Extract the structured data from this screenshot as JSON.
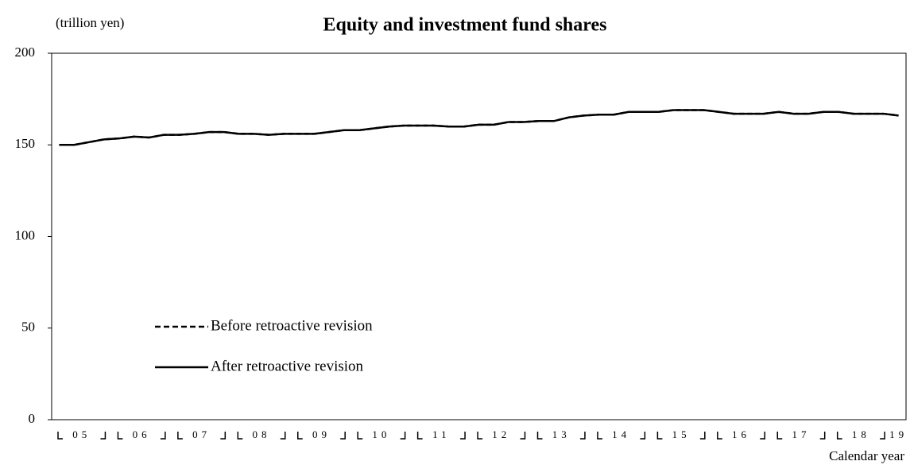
{
  "chart_data": {
    "type": "line",
    "title": "Equity and investment fund shares",
    "y_unit_label": "(trillion  yen)",
    "x_axis_label": "Calendar year",
    "year_labels": [
      "05",
      "06",
      "07",
      "08",
      "09",
      "10",
      "11",
      "12",
      "13",
      "14",
      "15",
      "16",
      "17",
      "18",
      "19"
    ],
    "series": [
      {
        "name": "Before retroactive revision",
        "color": "#000000",
        "dash": true,
        "values": [
          150,
          150,
          151.5,
          153,
          153.5,
          154.5,
          154,
          155.5,
          155.5,
          156,
          157,
          157,
          156,
          156,
          155.5,
          156,
          156,
          156,
          157,
          158,
          158,
          159,
          160,
          160.5,
          160.5,
          160.5,
          160,
          160,
          161,
          161,
          162.5,
          162.5,
          163,
          163,
          165,
          166,
          166.5,
          166.5,
          168,
          168,
          168,
          169,
          169,
          169,
          168,
          167,
          167,
          167,
          168,
          167,
          167,
          168,
          168,
          167,
          167,
          167,
          166
        ]
      },
      {
        "name": "After retroactive revision",
        "color": "#000000",
        "dash": false,
        "values": [
          150,
          150,
          151.5,
          153,
          153.5,
          154.5,
          154,
          155.5,
          155.5,
          156,
          157,
          157,
          156,
          156,
          155.5,
          156,
          156,
          156,
          157,
          158,
          158,
          159,
          160,
          160.5,
          160.5,
          160.5,
          160,
          160,
          161,
          161,
          162.5,
          162.5,
          163,
          163,
          165,
          166,
          166.5,
          166.5,
          168,
          168,
          168,
          169,
          169,
          169,
          168,
          167,
          167,
          167,
          168,
          167,
          167,
          168,
          168,
          167,
          167,
          167,
          166
        ]
      }
    ],
    "ylim": [
      0,
      200
    ],
    "yticks": [
      0,
      50,
      100,
      150,
      200
    ],
    "grid": false
  }
}
